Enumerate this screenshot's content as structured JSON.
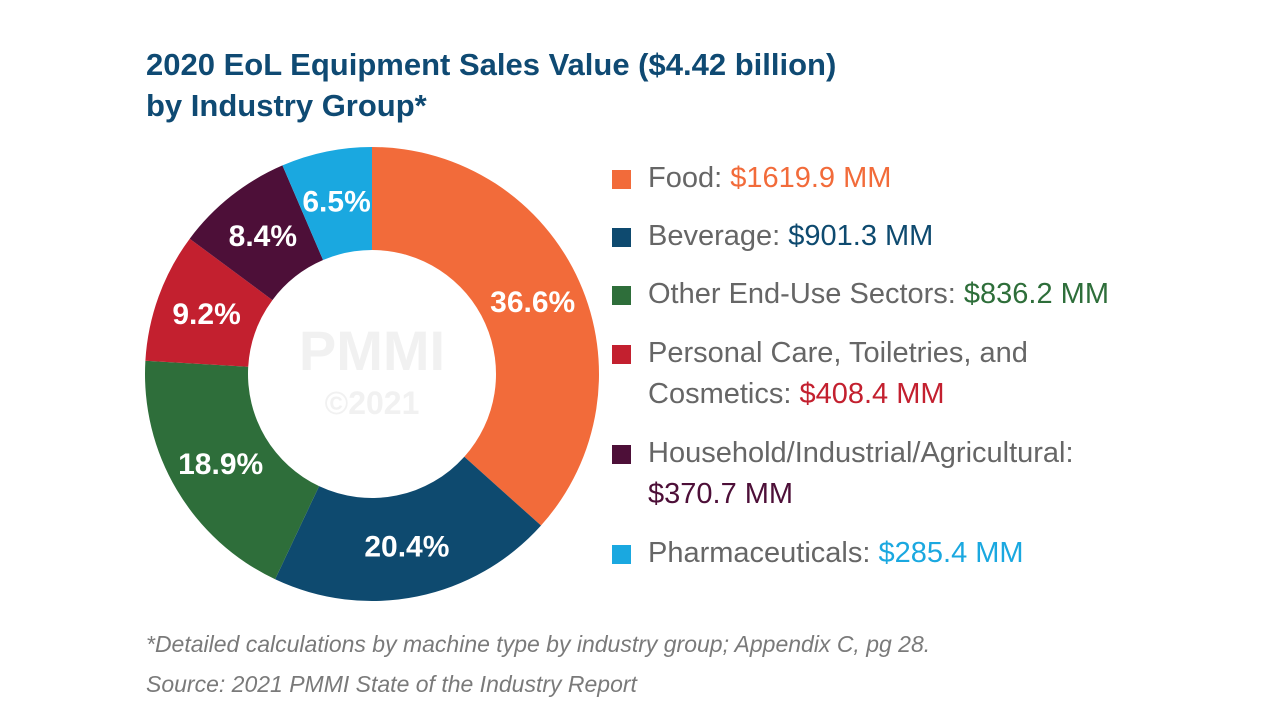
{
  "title": {
    "line1": "2020 EoL Equipment Sales Value ($4.42 billion)",
    "line2": "by Industry Group*"
  },
  "chart_data": {
    "type": "pie",
    "categories": [
      "Food",
      "Beverage",
      "Other End-Use Sectors",
      "Personal Care, Toiletries, and Cosmetics",
      "Household/Industrial/Agricultural",
      "Pharmaceuticals"
    ],
    "values": [
      1619.9,
      901.3,
      836.2,
      408.4,
      370.7,
      285.4
    ],
    "percent_labels": [
      "36.6%",
      "20.4%",
      "18.9%",
      "9.2%",
      "8.4%",
      "6.5%"
    ],
    "colors": [
      "#f26b3a",
      "#0e4a6f",
      "#2e6e3a",
      "#c3202f",
      "#4d0f38",
      "#1aa8e0"
    ],
    "style": "donut",
    "legend_placement": "right"
  },
  "legend": [
    {
      "label_lines": [
        "Food: "
      ],
      "value_lines": [
        "$1619.9 MM"
      ]
    },
    {
      "label_lines": [
        "Beverage: "
      ],
      "value_lines": [
        "$901.3 MM"
      ]
    },
    {
      "label_lines": [
        "Other End-Use Sectors: "
      ],
      "value_lines": [
        "$836.2 MM"
      ]
    },
    {
      "label_lines": [
        "Personal Care, Toiletries, and",
        "Cosmetics: "
      ],
      "value_lines": [
        "",
        "$408.4 MM"
      ]
    },
    {
      "label_lines": [
        "Household/Industrial/Agricultural:",
        ""
      ],
      "value_lines": [
        "",
        "$370.7 MM"
      ]
    },
    {
      "label_lines": [
        "Pharmaceuticals: "
      ],
      "value_lines": [
        "$285.4 MM"
      ]
    }
  ],
  "watermark": {
    "brand": "PMMI",
    "year": "©2021"
  },
  "footnote": {
    "line1": "*Detailed calculations by machine type by industry group; Appendix C, pg 28.",
    "line2": "Source: 2021 PMMI State of the Industry Report"
  }
}
